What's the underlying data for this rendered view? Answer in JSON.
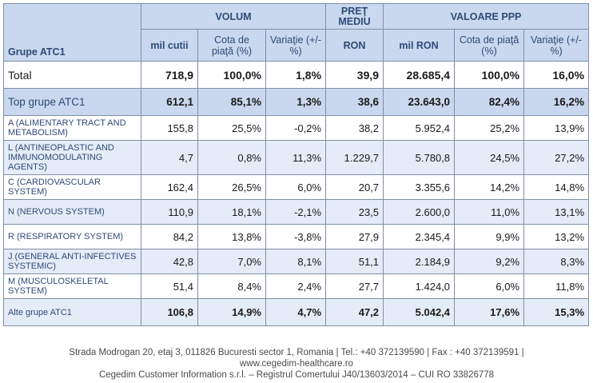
{
  "header": {
    "group_label": "Grupe ATC1",
    "volum": "VOLUM",
    "pret": "PREŢ MEDIU",
    "valoare": "VALOARE PPP",
    "sub": [
      "mil cutii",
      "Cota de piaţă (%)",
      "Variaţie (+/- %)",
      "RON",
      "mil RON",
      "Cota de piaţă (%)",
      "Variaţie (+/- %)"
    ]
  },
  "rows": [
    {
      "label": "Total",
      "vals": [
        "718,9",
        "100,0%",
        "1,8%",
        "39,9",
        "28.685,4",
        "100,0%",
        "16,0%"
      ]
    },
    {
      "label": "Top grupe ATC1",
      "vals": [
        "612,1",
        "85,1%",
        "1,3%",
        "38,6",
        "23.643,0",
        "82,4%",
        "16,2%"
      ]
    },
    {
      "label": "A (ALIMENTARY TRACT AND METABOLISM)",
      "vals": [
        "155,8",
        "25,5%",
        "-0,2%",
        "38,2",
        "5.952,4",
        "25,2%",
        "13,9%"
      ]
    },
    {
      "label": "L (ANTINEOPLASTIC AND IMMUNOMODULATING AGENTS)",
      "vals": [
        "4,7",
        "0,8%",
        "11,3%",
        "1.229,7",
        "5.780,8",
        "24,5%",
        "27,2%"
      ]
    },
    {
      "label": "C (CARDIOVASCULAR SYSTEM)",
      "vals": [
        "162,4",
        "26,5%",
        "6,0%",
        "20,7",
        "3.355,6",
        "14,2%",
        "14,8%"
      ]
    },
    {
      "label": "N (NERVOUS SYSTEM)",
      "vals": [
        "110,9",
        "18,1%",
        "-2,1%",
        "23,5",
        "2.600,0",
        "11,0%",
        "13,1%"
      ]
    },
    {
      "label": "R (RESPIRATORY SYSTEM)",
      "vals": [
        "84,2",
        "13,8%",
        "-3,8%",
        "27,9",
        "2.345,4",
        "9,9%",
        "13,2%"
      ]
    },
    {
      "label": "J (GENERAL ANTI-INFECTIVES SYSTEMIC)",
      "vals": [
        "42,8",
        "7,0%",
        "8,1%",
        "51,1",
        "2.184,9",
        "9,2%",
        "8,3%"
      ]
    },
    {
      "label": "M (MUSCULOSKELETAL SYSTEM)",
      "vals": [
        "51,4",
        "8,4%",
        "2,4%",
        "27,7",
        "1.424,0",
        "6,0%",
        "11,8%"
      ]
    },
    {
      "label": "Alte grupe ATC1",
      "vals": [
        "106,8",
        "14,9%",
        "4,7%",
        "47,2",
        "5.042,4",
        "17,6%",
        "15,3%"
      ]
    }
  ],
  "footer": {
    "line1": "Strada Modrogan 20, etaj 3, 011826 Bucuresti sector 1, Romania | Tel.: +40 372139590 | Fax : +40 372139591 |",
    "line2": "www.cegedim-healthcare.ro",
    "line3": "Cegedim Customer Information s.r.l. – Registrul Comertului J40/13603/2014 – CUI RO 33826778"
  }
}
